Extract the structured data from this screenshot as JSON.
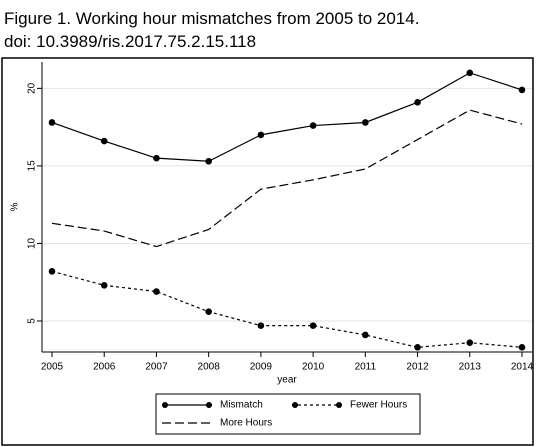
{
  "chart_data": {
    "type": "line",
    "title": "Figure 1. Working hour mismatches from 2005 to 2014.",
    "subtitle": "doi: 10.3989/ris.2017.75.2.15.118",
    "x_label": "year",
    "y_label": "%",
    "x": [
      2005,
      2006,
      2007,
      2008,
      2009,
      2010,
      2011,
      2012,
      2013,
      2014
    ],
    "xlim": [
      2005,
      2014
    ],
    "xticks": [
      2005,
      2006,
      2007,
      2008,
      2009,
      2010,
      2011,
      2012,
      2013,
      2014
    ],
    "ylim": [
      3,
      21.7
    ],
    "yticks": [
      5,
      10,
      15,
      20
    ],
    "grid": true,
    "series": [
      {
        "name": "Mismatch",
        "color": "#000000",
        "line_style": "solid",
        "markers": true,
        "values": [
          17.8,
          16.6,
          15.5,
          15.3,
          17.0,
          17.6,
          17.8,
          19.1,
          21.0,
          19.9
        ]
      },
      {
        "name": "Fewer Hours",
        "color": "#000000",
        "line_style": "short-dash",
        "markers": true,
        "values": [
          8.2,
          7.3,
          6.9,
          5.6,
          4.7,
          4.7,
          4.1,
          3.3,
          3.6,
          3.3
        ]
      },
      {
        "name": "More Hours",
        "color": "#000000",
        "line_style": "long-dash",
        "markers": false,
        "values": [
          11.3,
          10.8,
          9.8,
          10.9,
          13.5,
          14.1,
          14.8,
          16.7,
          18.6,
          17.7
        ]
      }
    ]
  }
}
